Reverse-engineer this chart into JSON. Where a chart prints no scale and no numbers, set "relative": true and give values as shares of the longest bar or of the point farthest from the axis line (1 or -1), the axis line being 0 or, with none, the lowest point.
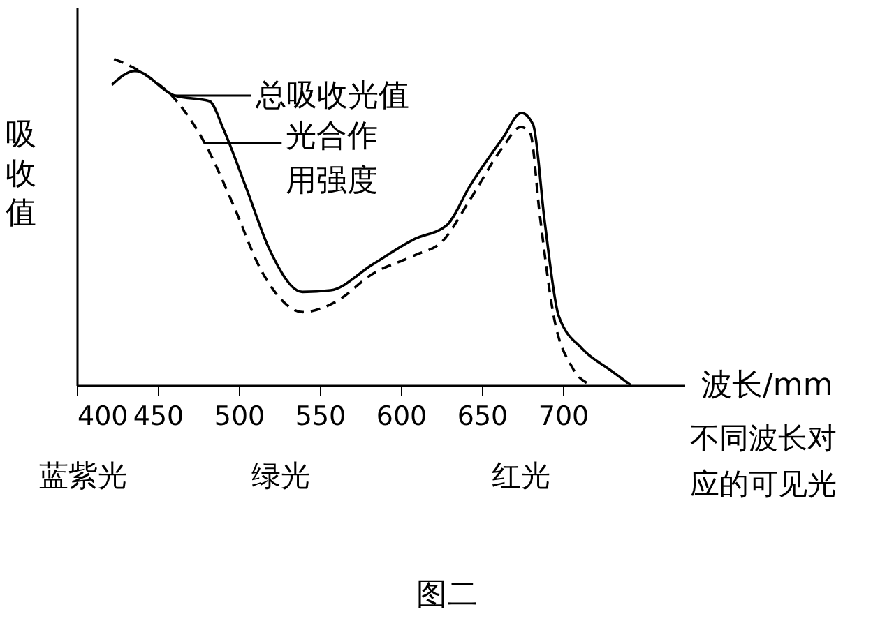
{
  "chart_data": {
    "type": "line",
    "title": "图二",
    "xlabel": "波长/mm",
    "ylabel": "吸收值",
    "relative": true,
    "grid": false,
    "xlim": [
      400,
      775
    ],
    "xticks": [
      400,
      450,
      500,
      550,
      600,
      650,
      700
    ],
    "series": [
      {
        "color": "#000000",
        "line_style": "solid",
        "x": [
          421.6,
          435.9,
          460.3,
          481.9,
          490.5,
          504.9,
          519.2,
          539.3,
          556.6,
          582.4,
          608.3,
          628.4,
          642.8,
          662.6,
          674.4,
          681.6,
          688.8,
          697.4,
          711.8,
          729.0,
          741.9
        ],
        "values": [
          0.921,
          0.964,
          0.888,
          0.871,
          0.785,
          0.6,
          0.413,
          0.286,
          0.291,
          0.37,
          0.448,
          0.491,
          0.613,
          0.756,
          0.835,
          0.799,
          0.499,
          0.212,
          0.112,
          0.047,
          0
        ]
      },
      {
        "color": "#000000",
        "line_style": "dashed",
        "x": [
          423.0,
          440.8,
          464.0,
          479.0,
          496.3,
          513.5,
          525.0,
          539.3,
          559.5,
          582.4,
          608.3,
          625.5,
          642.8,
          662.6,
          674.1,
          679.9,
          685.6,
          694.3,
          705.8,
          717.5
        ],
        "values": [
          1.0,
          0.957,
          0.857,
          0.742,
          0.556,
          0.355,
          0.269,
          0.224,
          0.255,
          0.341,
          0.398,
          0.441,
          0.57,
          0.728,
          0.792,
          0.771,
          0.527,
          0.212,
          0.054,
          0
        ]
      }
    ],
    "annotations": [
      {
        "text": "总吸收光值",
        "x": 460.3,
        "y": 0.888
      },
      {
        "text": "光合作用强度",
        "x": 479.0,
        "y": 0.742
      },
      "蓝紫光",
      "绿光",
      "红光",
      "不同波长对应的可见光"
    ]
  }
}
